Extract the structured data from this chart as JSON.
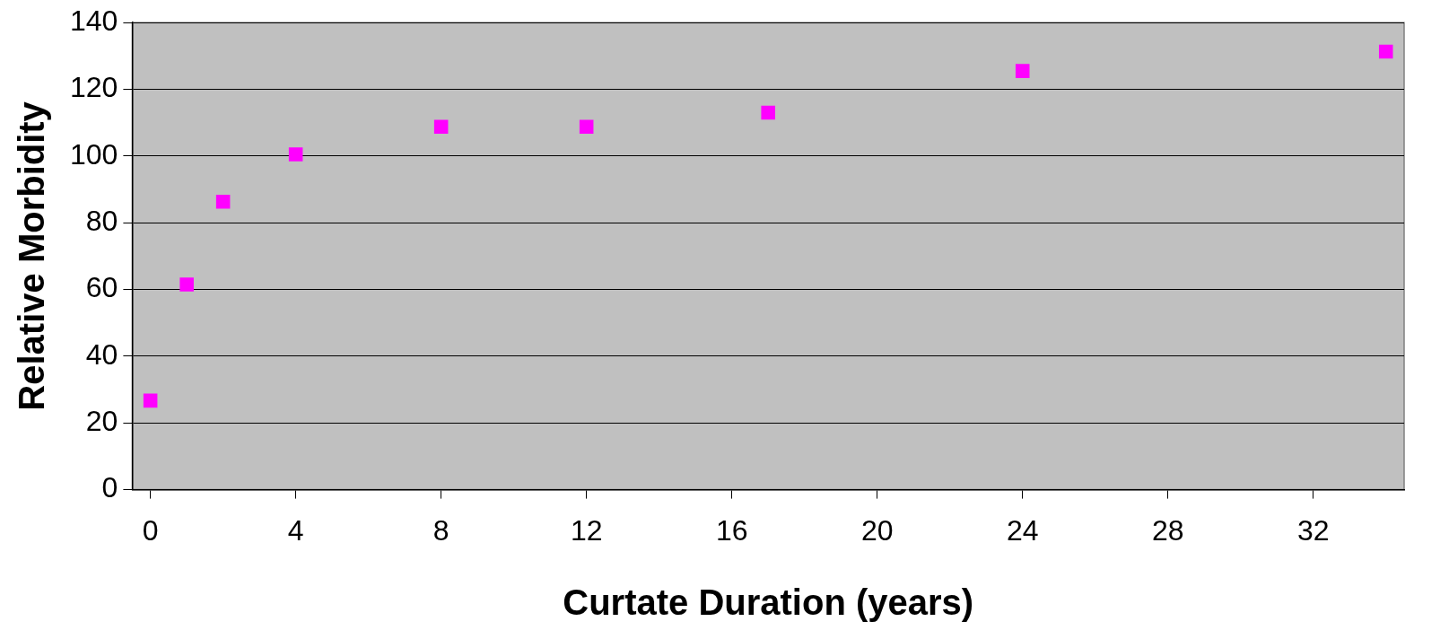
{
  "chart_data": {
    "type": "scatter",
    "xlabel": "Curtate Duration (years)",
    "ylabel": "Relative Morbidity",
    "x": [
      0,
      1,
      2,
      4,
      8,
      12,
      17,
      24,
      34
    ],
    "series": [
      {
        "color": "#ff00ff",
        "values": [
          26.7,
          61.5,
          86.3,
          100.5,
          108.8,
          108.8,
          113,
          125.5,
          131.3
        ]
      }
    ],
    "xlim": [
      -0.5,
      34.5
    ],
    "xticks": [
      0,
      4,
      8,
      12,
      16,
      20,
      24,
      28,
      32
    ],
    "ylim": [
      0,
      140
    ],
    "yticks": [
      0,
      20,
      40,
      60,
      80,
      100,
      120,
      140
    ],
    "grid": "y",
    "marker": "square",
    "legend": false
  }
}
